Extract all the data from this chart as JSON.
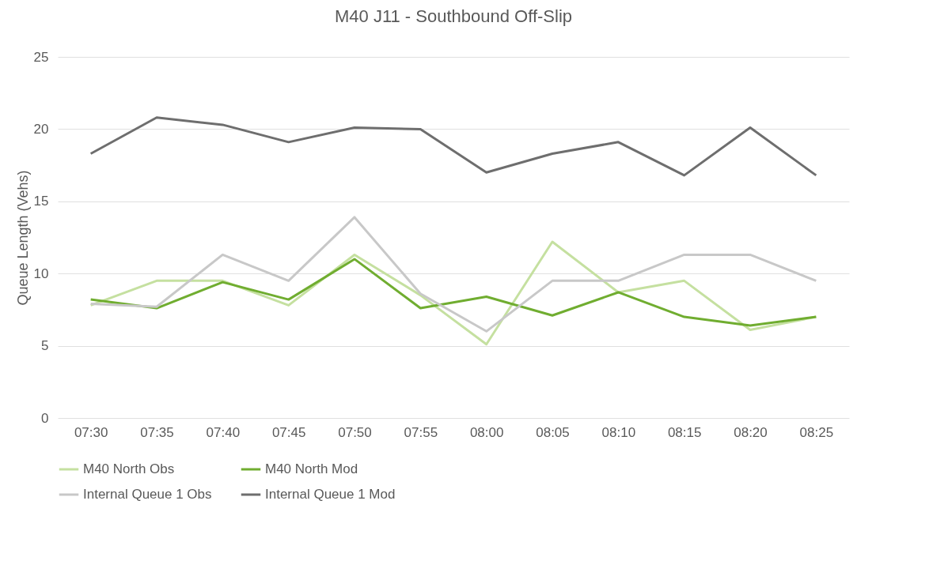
{
  "chart_data": {
    "type": "line",
    "title": "M40 J11 - Southbound Off-Slip",
    "ylabel": "Queue Length (Vehs)",
    "categories": [
      "07:30",
      "07:35",
      "07:40",
      "07:45",
      "07:50",
      "07:55",
      "08:00",
      "08:05",
      "08:10",
      "08:15",
      "08:20",
      "08:25"
    ],
    "series": [
      {
        "name": "M40 North Obs",
        "color": "#c5e0a0",
        "values": [
          7.8,
          9.5,
          9.5,
          7.8,
          11.3,
          8.5,
          5.1,
          12.2,
          8.7,
          9.5,
          6.1,
          7.0
        ]
      },
      {
        "name": "M40 North Mod",
        "color": "#70ad30",
        "values": [
          8.2,
          7.6,
          9.4,
          8.2,
          11.0,
          7.6,
          8.4,
          7.1,
          8.7,
          7.0,
          6.4,
          7.0
        ]
      },
      {
        "name": "Internal Queue 1 Obs",
        "color": "#c8c8c8",
        "values": [
          7.9,
          7.7,
          11.3,
          9.5,
          13.9,
          8.6,
          6.0,
          9.5,
          9.5,
          11.3,
          11.3,
          9.5
        ]
      },
      {
        "name": "Internal Queue 1 Mod",
        "color": "#6e6e6e",
        "values": [
          18.3,
          20.8,
          20.3,
          19.1,
          20.1,
          20.0,
          17.0,
          18.3,
          19.1,
          16.8,
          20.1,
          16.8
        ]
      }
    ],
    "ylim": [
      0,
      25
    ],
    "yticks": [
      0,
      5,
      10,
      15,
      20,
      25
    ],
    "grid": "y",
    "legend": "bottom",
    "marker": "none",
    "line_style": "solid"
  }
}
